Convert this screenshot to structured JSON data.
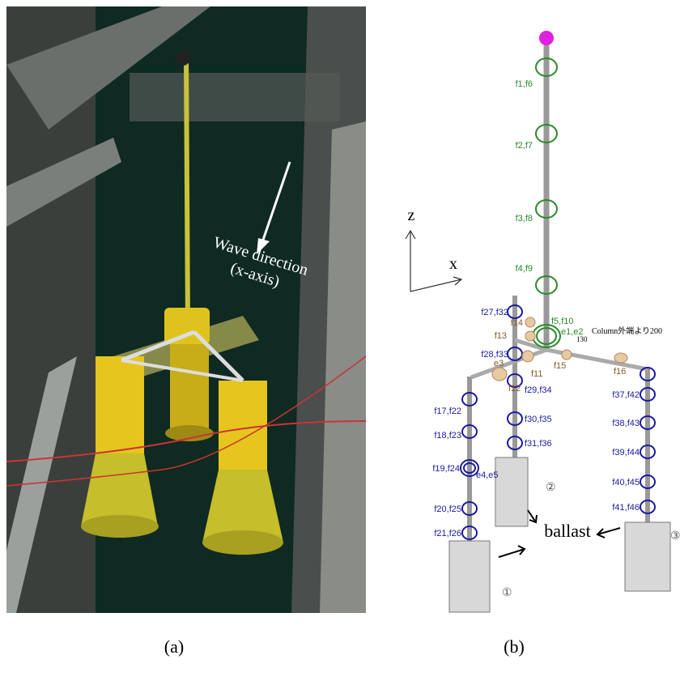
{
  "figure": {
    "panel_a": {
      "annotation": [
        "Wave direction",
        "(x-axis)"
      ],
      "caption": "(a)"
    },
    "panel_b": {
      "axes": {
        "z": "z",
        "x": "x"
      },
      "tower_labels": [
        "f1,f6",
        "f2,f7",
        "f3,f8",
        "f4,f9",
        "f5,f10"
      ],
      "joint_labels": [
        "e1,e2",
        "e3",
        "e4,e5"
      ],
      "brace_labels": [
        "f11",
        "f12",
        "f13",
        "f14",
        "f15",
        "f16"
      ],
      "column1_labels": [
        "f17,f22",
        "f18,f23",
        "f19,f24",
        "f20,f25",
        "f21,f26"
      ],
      "column2_labels": [
        "f27,f32",
        "f28,f33",
        "f29,f34",
        "f30,f35",
        "f31,f36"
      ],
      "column3_labels": [
        "f37,f42",
        "f38,f43",
        "f39,f44",
        "f40,f45",
        "f41,f46"
      ],
      "dimension_note": "Column外端より200",
      "dimension": "130",
      "column_numbers": [
        "①",
        "②",
        "③"
      ],
      "ballast": "ballast",
      "caption": "(b)"
    }
  }
}
